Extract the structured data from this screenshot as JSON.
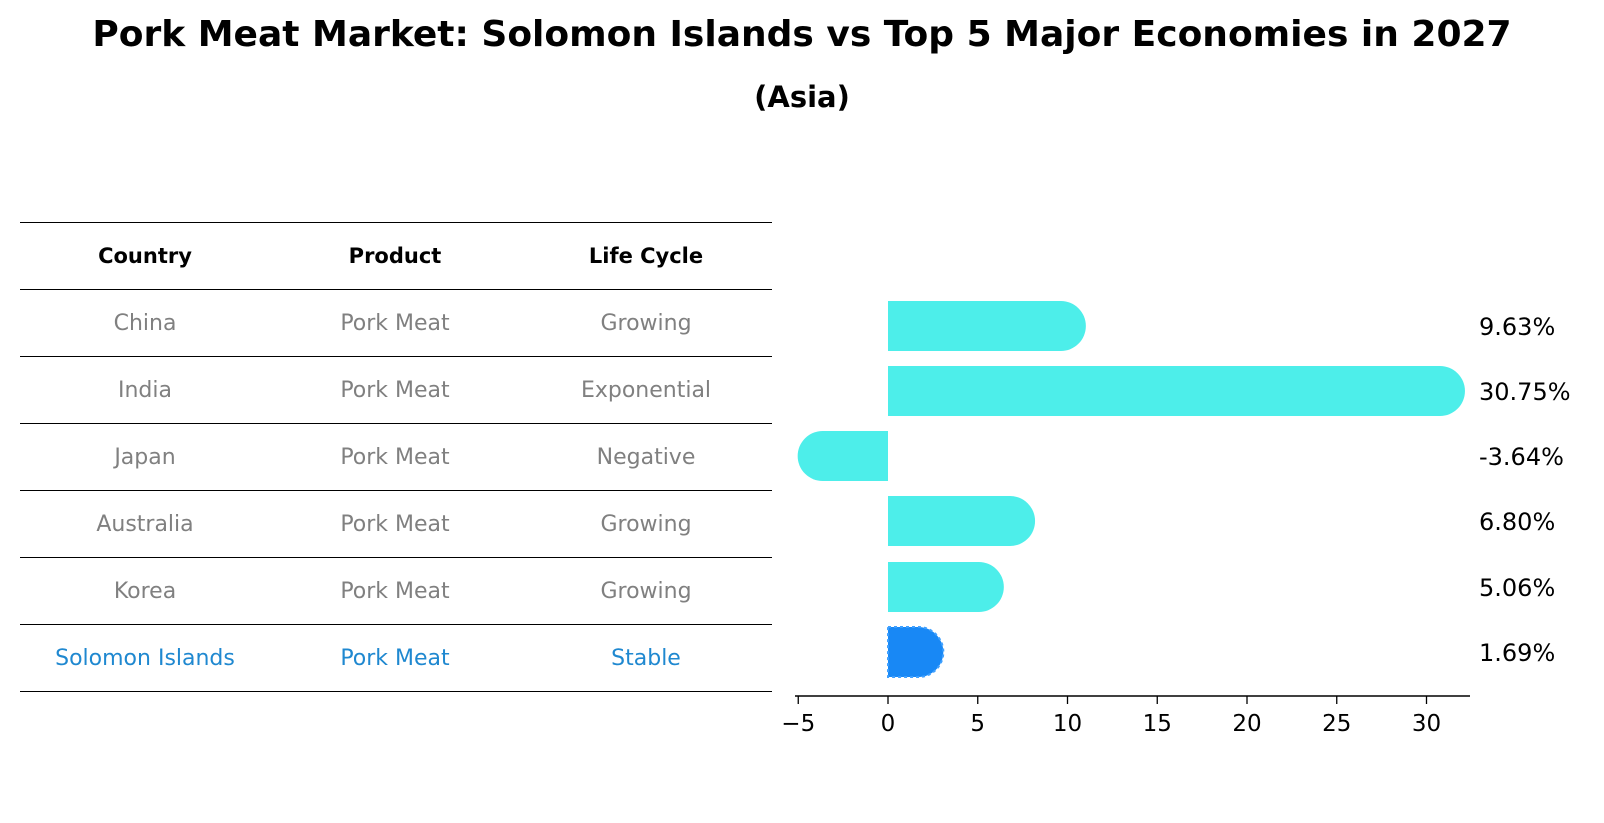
{
  "chart_data": {
    "type": "bar",
    "orientation": "horizontal",
    "title": "Pork Meat Market: Solomon Islands vs Top 5 Major Economies in 2027",
    "subtitle": "(Asia)",
    "categories": [
      "China",
      "India",
      "Japan",
      "Australia",
      "Korea",
      "Solomon Islands"
    ],
    "values": [
      9.63,
      30.75,
      -3.64,
      6.8,
      5.06,
      1.69
    ],
    "value_labels": [
      "9.63%",
      "30.75%",
      "-3.64%",
      "6.80%",
      "5.06%",
      "1.69%"
    ],
    "xlim": [
      -5,
      32.5
    ],
    "xticks": [
      -5,
      0,
      5,
      10,
      15,
      20,
      25,
      30
    ],
    "xtick_labels": [
      "−5",
      "0",
      "5",
      "10",
      "15",
      "20",
      "25",
      "30"
    ],
    "highlight_index": 5,
    "colors": {
      "bar": "#4deeea",
      "highlight": "#1888f5",
      "table_text": "#808080",
      "highlight_text": "#1f88d0"
    }
  },
  "table": {
    "headers": [
      "Country",
      "Product",
      "Life Cycle"
    ],
    "rows": [
      [
        "China",
        "Pork Meat",
        "Growing"
      ],
      [
        "India",
        "Pork Meat",
        "Exponential"
      ],
      [
        "Japan",
        "Pork Meat",
        "Negative"
      ],
      [
        "Australia",
        "Pork Meat",
        "Growing"
      ],
      [
        "Korea",
        "Pork Meat",
        "Growing"
      ],
      [
        "Solomon Islands",
        "Pork Meat",
        "Stable"
      ]
    ]
  }
}
